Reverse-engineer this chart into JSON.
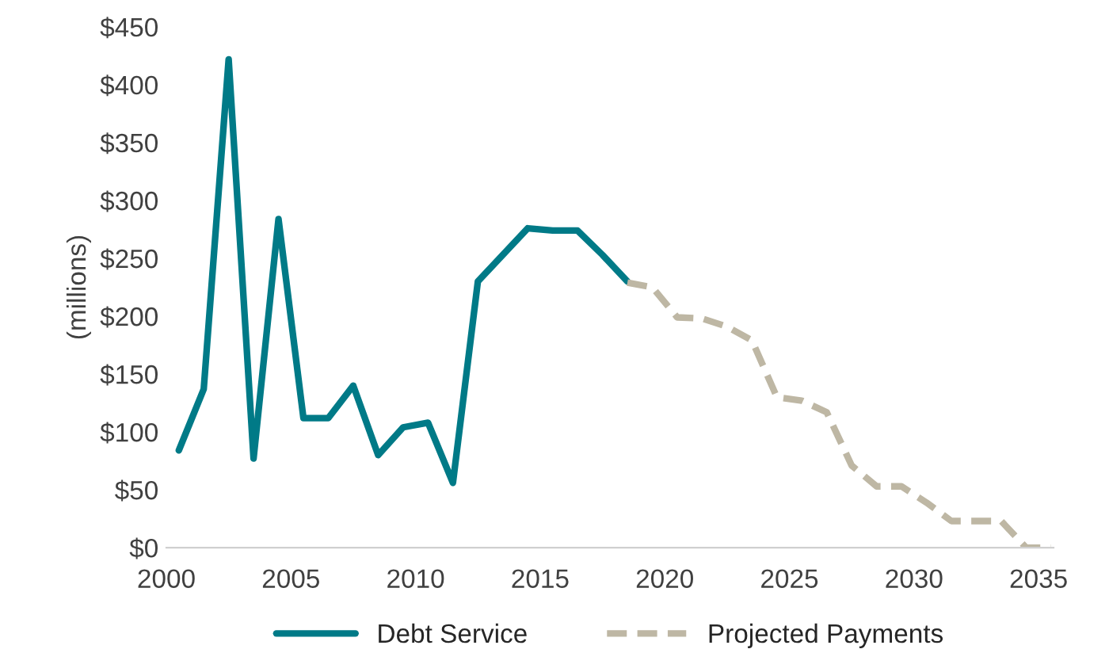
{
  "chart_data": {
    "type": "line",
    "ylabel": "(millions)",
    "series": [
      {
        "name": "Debt Service",
        "color": "#007a87",
        "line_style": "solid",
        "x": [
          2000.5,
          2001.5,
          2002.5,
          2003.5,
          2004.5,
          2005.5,
          2006.5,
          2007.5,
          2008.5,
          2009.5,
          2010.5,
          2011.5,
          2012.5,
          2013.5,
          2014.5,
          2015.5,
          2016.5,
          2017.5,
          2018.5
        ],
        "values": [
          84,
          137,
          422,
          77,
          284,
          112,
          112,
          140,
          80,
          104,
          108,
          56,
          230,
          253,
          276,
          274,
          274,
          253,
          230
        ]
      },
      {
        "name": "Projected Payments",
        "color": "#beb7a4",
        "line_style": "dashed",
        "x": [
          2018.5,
          2019.5,
          2020.5,
          2021.5,
          2022.5,
          2023.5,
          2024.5,
          2025.5,
          2026.5,
          2027.5,
          2028.5,
          2029.5,
          2030.5,
          2031.5,
          2032.5,
          2033.5,
          2034.5,
          2035.5
        ],
        "values": [
          229,
          225,
          199,
          198,
          191,
          179,
          130,
          127,
          117,
          71,
          53,
          53,
          39,
          23,
          23,
          23,
          0,
          0
        ]
      }
    ],
    "xlim": [
      2000,
      2035.6
    ],
    "xticks": [
      2000,
      2005,
      2010,
      2015,
      2020,
      2025,
      2030,
      2035
    ],
    "ylim": [
      0,
      450
    ],
    "yticks": [
      {
        "value": 0,
        "label": "$0"
      },
      {
        "value": 50,
        "label": "$50"
      },
      {
        "value": 100,
        "label": "$100"
      },
      {
        "value": 150,
        "label": "$150"
      },
      {
        "value": 200,
        "label": "$200"
      },
      {
        "value": 250,
        "label": "$250"
      },
      {
        "value": 300,
        "label": "$300"
      },
      {
        "value": 350,
        "label": "$350"
      },
      {
        "value": 400,
        "label": "$400"
      },
      {
        "value": 450,
        "label": "$450"
      }
    ],
    "grid": false,
    "legend": "bottom",
    "marker": "none"
  }
}
